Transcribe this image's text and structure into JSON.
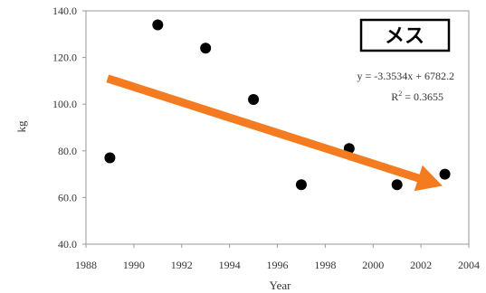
{
  "chart_data": {
    "type": "scatter",
    "xlabel": "Year",
    "ylabel": "kg",
    "xlim": [
      1988,
      2004
    ],
    "ylim": [
      40,
      140
    ],
    "x_ticks": [
      "1988",
      "1990",
      "1992",
      "1994",
      "1996",
      "1998",
      "2000",
      "2002",
      "2004"
    ],
    "y_ticks": [
      "40.0",
      "60.0",
      "80.0",
      "100.0",
      "120.0",
      "140.0"
    ],
    "grid": false,
    "points": [
      {
        "x": 1989,
        "y": 77
      },
      {
        "x": 1991,
        "y": 134
      },
      {
        "x": 1993,
        "y": 124
      },
      {
        "x": 1995,
        "y": 102
      },
      {
        "x": 1997,
        "y": 65.5
      },
      {
        "x": 1999,
        "y": 81
      },
      {
        "x": 2001,
        "y": 65.5
      },
      {
        "x": 2003,
        "y": 70
      }
    ],
    "trend_arrow": {
      "from": {
        "x": 1988.9,
        "y": 111
      },
      "to": {
        "x": 2002.9,
        "y": 65
      },
      "color": "#f47b20"
    },
    "annotations": {
      "badge": "メス",
      "equation": "y = -3.3534x + 6782.2",
      "r2_label": "R",
      "r2_exp": "2",
      "r2_value": " = 0.3655"
    }
  }
}
